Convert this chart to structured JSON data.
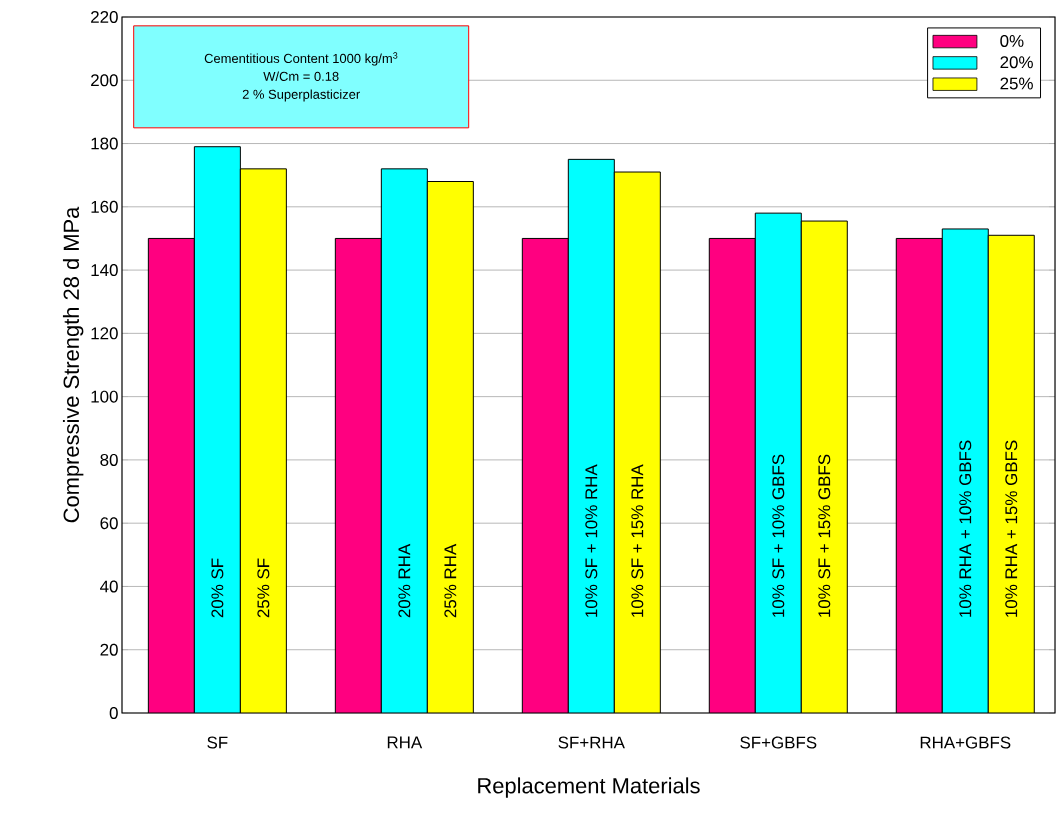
{
  "chart_data": {
    "type": "bar",
    "xlabel": "Replacement Materials",
    "ylabel": "Compressive Strength 28 d   MPa",
    "categories": [
      "SF",
      "RHA",
      "SF+RHA",
      "SF+GBFS",
      "RHA+GBFS"
    ],
    "series": [
      {
        "name": "0%",
        "color": "#ff0080",
        "values": [
          150,
          150,
          150,
          150,
          150
        ]
      },
      {
        "name": "20%",
        "color": "#00ffff",
        "values": [
          179,
          172,
          175,
          158,
          153
        ]
      },
      {
        "name": "25%",
        "color": "#ffff00",
        "values": [
          172,
          168,
          171,
          155.5,
          151
        ]
      }
    ],
    "ylim": [
      0,
      220
    ],
    "yticks": [
      0,
      20,
      40,
      60,
      80,
      100,
      120,
      140,
      160,
      180,
      200,
      220
    ],
    "grid": "y",
    "legend": "top right",
    "annotations": [
      "Cementitious Content 1000 kg/m$^{3}$",
      "W/Cm = 0.18",
      "2 % Superplasticizer",
      "20% SF",
      "25% SF",
      "20% RHA",
      "25% RHA",
      "10% SF + 10% RHA",
      "10% SF + 15% RHA",
      "10% SF + 10% GBFS",
      "10% SF + 15% GBFS",
      "10% RHA + 10% GBFS",
      "10% RHA + 15% GBFS"
    ]
  }
}
